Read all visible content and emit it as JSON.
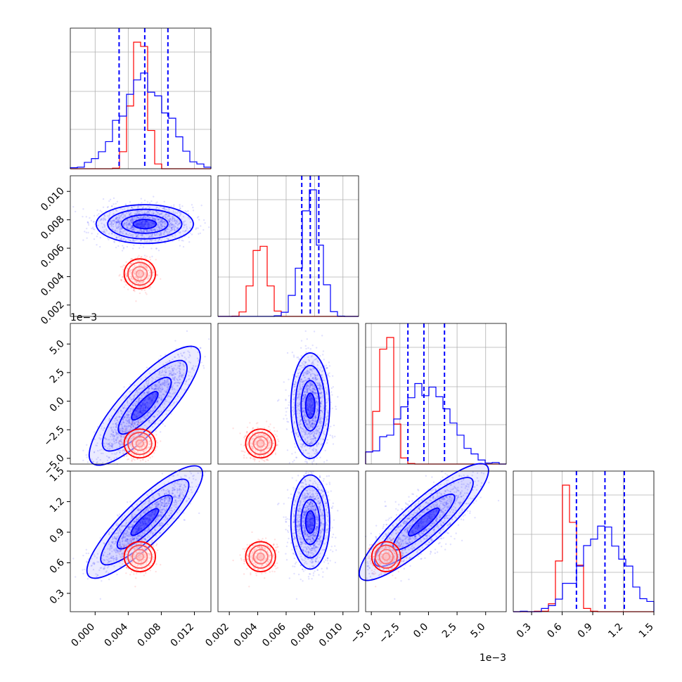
{
  "chart_data": {
    "type": "scatter",
    "title": "",
    "grid": true,
    "colors": {
      "red": "#ff0000",
      "blue": "#0000ff",
      "grid": "#b0b0b0"
    },
    "series": [
      {
        "color": "#ff0000",
        "mean": [
          0.0054,
          0.0042,
          -0.0037,
          0.66
        ],
        "sd": [
          0.0009,
          0.0005,
          0.0006,
          0.07
        ]
      },
      {
        "color": "#0000ff",
        "mean": [
          0.006,
          0.0077,
          -0.0004,
          1.0
        ],
        "sd": [
          0.0028,
          0.00065,
          0.0022,
          0.22
        ]
      }
    ],
    "quantiles_blue": [
      [
        0.0029,
        0.006,
        0.0088
      ],
      [
        0.0071,
        0.0077,
        0.0083
      ],
      [
        -0.0018,
        -0.0004,
        0.0014
      ],
      [
        0.74,
        1.02,
        1.21
      ]
    ],
    "axes": [
      {
        "range": [
          -0.003,
          0.014
        ],
        "ticks": [
          0.0,
          0.004,
          0.008,
          0.012
        ],
        "tick_labels": [
          "0.000",
          "0.004",
          "0.008",
          "0.012"
        ]
      },
      {
        "range": [
          0.0012,
          0.0111
        ],
        "ticks": [
          0.002,
          0.004,
          0.006,
          0.008,
          0.01
        ],
        "tick_labels": [
          "0.002",
          "0.004",
          "0.006",
          "0.008",
          "0.010"
        ]
      },
      {
        "range": [
          -0.0055,
          0.0068
        ],
        "ticks": [
          -0.005,
          -0.0025,
          0.0,
          0.0025,
          0.005
        ],
        "tick_labels": [
          "−5.0",
          "−2.5",
          "0.0",
          "2.5",
          "5.0"
        ],
        "offset_label": "1e−3"
      },
      {
        "range": [
          0.12,
          1.5
        ],
        "ticks": [
          0.3,
          0.6,
          0.9,
          1.2,
          1.5
        ],
        "tick_labels": [
          "0.3",
          "0.6",
          "0.9",
          "1.2",
          "1.5"
        ]
      }
    ],
    "diag_hist_bins": 20,
    "diag_ylim": [
      0,
      1.15
    ]
  }
}
